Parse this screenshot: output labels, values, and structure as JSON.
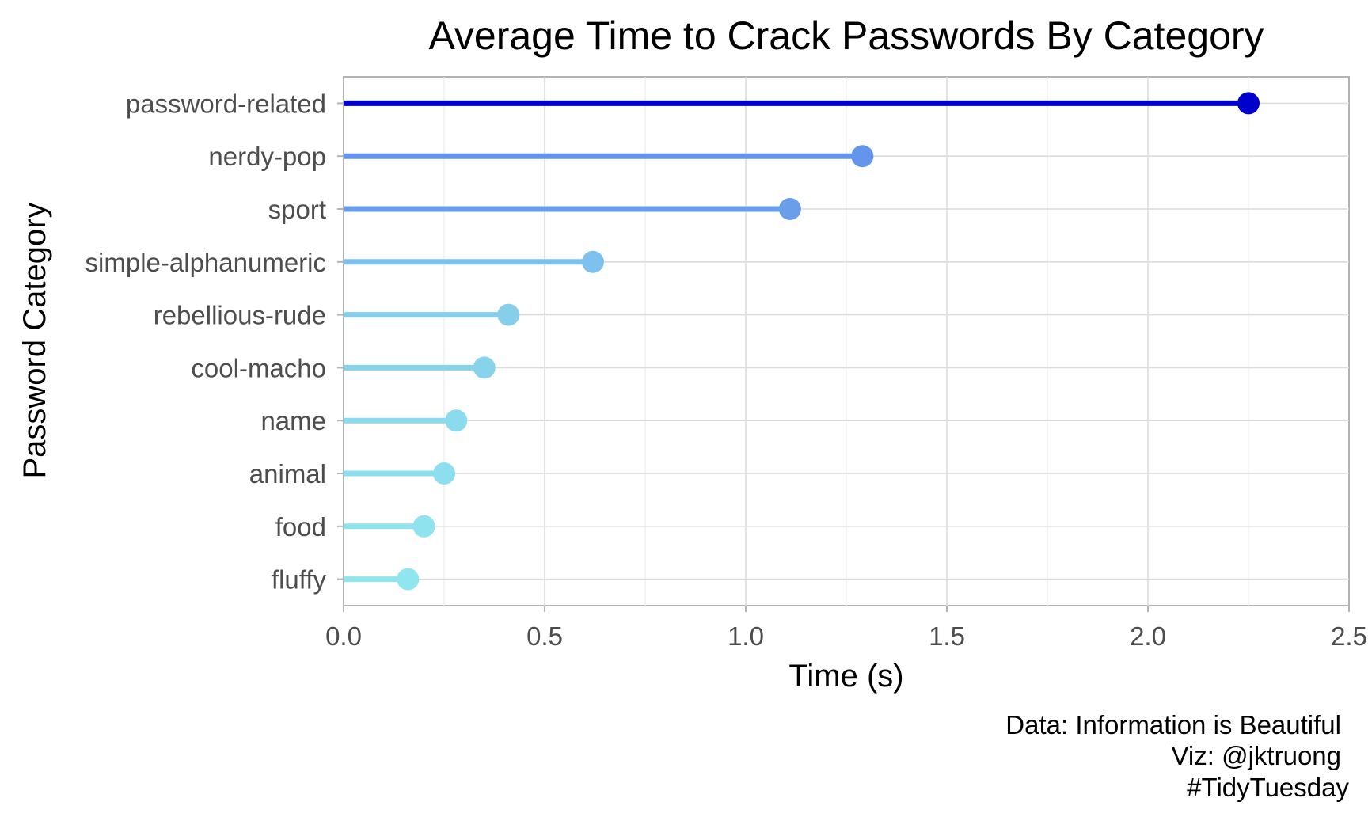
{
  "chart_data": {
    "type": "lollipop",
    "title": "Average Time to Crack Passwords By Category",
    "xlabel": "Time (s)",
    "ylabel": "Password Category",
    "xlim": [
      0,
      2.5
    ],
    "x_ticks": [
      "0.0",
      "0.5",
      "1.0",
      "1.5",
      "2.0",
      "2.5"
    ],
    "grid": true,
    "categories": [
      "password-related",
      "nerdy-pop",
      "sport",
      "simple-alphanumeric",
      "rebellious-rude",
      "cool-macho",
      "name",
      "animal",
      "food",
      "fluffy"
    ],
    "values": [
      2.25,
      1.29,
      1.11,
      0.62,
      0.41,
      0.35,
      0.28,
      0.25,
      0.2,
      0.16
    ],
    "colors": [
      "#0000cd",
      "#6495ed",
      "#6a9eeb",
      "#7ec0ee",
      "#87ceeb",
      "#87d3ec",
      "#8adbee",
      "#8cdfee",
      "#8ee3ee",
      "#90e6ee"
    ],
    "caption": [
      "Data: Information is Beautiful",
      "Viz: @jktruong",
      "#TidyTuesday"
    ]
  }
}
